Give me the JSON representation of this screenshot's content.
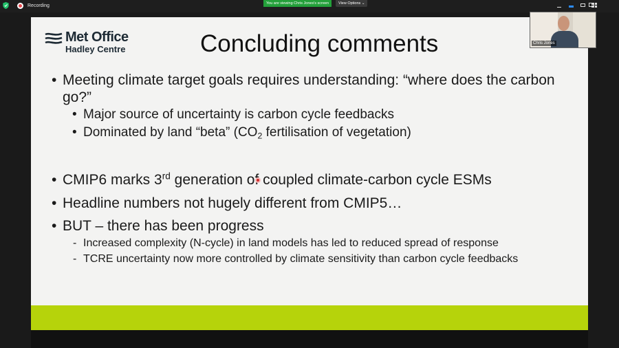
{
  "topbar": {
    "recording_label": "Recording",
    "viewing_banner": "You are viewing Chris Jones's screen",
    "view_options_label": "View Options ⌄"
  },
  "slide": {
    "logo": {
      "line1": "Met Office",
      "line2": "Hadley Centre"
    },
    "title": "Concluding comments",
    "bullets": {
      "b1": "Meeting climate target goals requires understanding: “where does the carbon go?”",
      "b1_sub1": "Major source of uncertainty is carbon cycle feedbacks",
      "b1_sub2_pre": "Dominated by land “beta” (CO",
      "b1_sub2_subscript": "2",
      "b1_sub2_post": " fertilisation of vegetation)",
      "b2_pre": "CMIP6 marks 3",
      "b2_sup": "rd",
      "b2_post": " generation of coupled climate-carbon cycle ESMs",
      "b3": "Headline numbers not hugely different from CMIP5…",
      "b4": "BUT – there has been progress",
      "b4_sub1": "Increased complexity (N-cycle) in land models has led to reduced spread of response",
      "b4_sub2": "TCRE uncertainty now more controlled by climate sensitivity than carbon cycle feedbacks"
    },
    "accent_color": "#b6d30b"
  },
  "video": {
    "participant_name": "Chris Jones"
  }
}
